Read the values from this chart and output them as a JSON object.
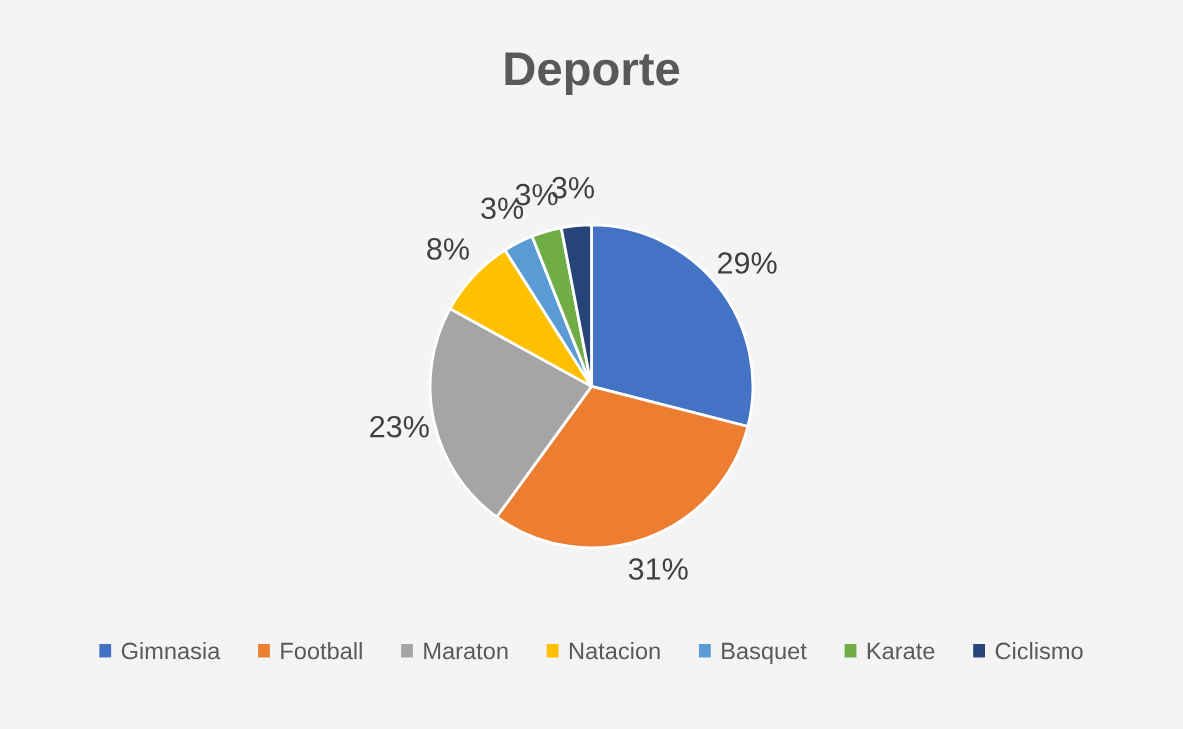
{
  "chart_data": {
    "type": "pie",
    "title": "Deporte",
    "categories": [
      "Gimnasia",
      "Football",
      "Maraton",
      "Natacion",
      "Basquet",
      "Karate",
      "Ciclismo"
    ],
    "values": [
      29,
      31,
      23,
      8,
      3,
      3,
      3
    ],
    "value_labels": [
      "29%",
      "31%",
      "23%",
      "8%",
      "3%",
      "3%",
      "3%"
    ],
    "colors": [
      "#4472c4",
      "#ed7d31",
      "#a5a5a5",
      "#ffc000",
      "#5b9bd5",
      "#70ad47",
      "#264478"
    ],
    "legend": "bottom"
  }
}
